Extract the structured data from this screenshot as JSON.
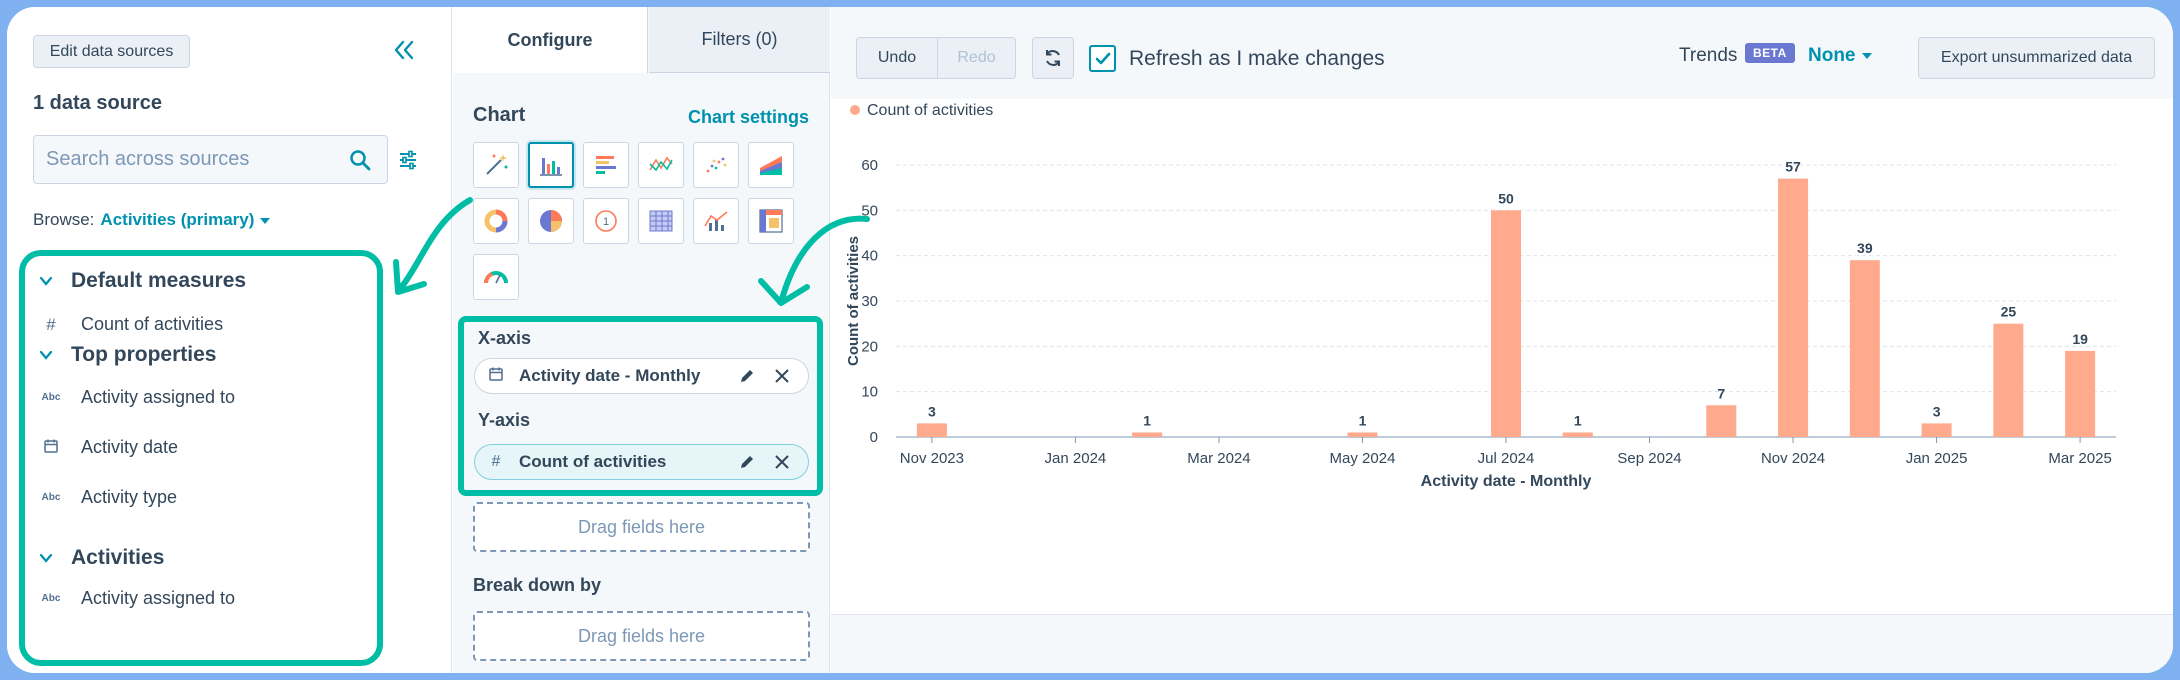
{
  "left_panel": {
    "edit_button": "Edit data sources",
    "data_source_count": "1 data source",
    "search_placeholder": "Search across sources",
    "browse_label": "Browse:",
    "browse_value": "Activities (primary)",
    "sections": [
      {
        "title": "Default measures",
        "items": [
          {
            "icon": "#",
            "label": "Count of activities"
          }
        ]
      },
      {
        "title": "Top properties",
        "items": [
          {
            "icon": "Abc",
            "label": "Activity assigned to"
          },
          {
            "icon": "calendar",
            "label": "Activity date"
          },
          {
            "icon": "Abc",
            "label": "Activity type"
          }
        ]
      },
      {
        "title": "Activities",
        "items": [
          {
            "icon": "Abc",
            "label": "Activity assigned to"
          }
        ]
      }
    ]
  },
  "middle_panel": {
    "tabs": [
      {
        "label": "Configure"
      },
      {
        "label": "Filters (0)"
      }
    ],
    "chart_heading": "Chart",
    "chart_settings": "Chart settings",
    "chart_types": [
      "magic-wand-icon",
      "column-chart-icon",
      "bar-chart-icon",
      "line-chart-icon",
      "scatter-icon",
      "area-chart-icon",
      "donut-icon",
      "pie-icon",
      "kpi-icon",
      "table-icon",
      "combo-icon",
      "pivot-icon",
      "gauge-icon"
    ],
    "x_axis_label": "X-axis",
    "x_axis_field": "Activity date - Monthly",
    "y_axis_label": "Y-axis",
    "y_axis_field": "Count of activities",
    "drag_placeholder": "Drag fields here",
    "break_down_label": "Break down by",
    "break_down_placeholder": "Drag fields here"
  },
  "toolbar": {
    "undo": "Undo",
    "redo": "Redo",
    "refresh_label": "Refresh as I make changes",
    "trends_label": "Trends",
    "beta_badge": "BETA",
    "trends_value": "None",
    "export": "Export unsummarized data"
  },
  "colors": {
    "accent": "#0091ae",
    "highlight": "#00bda5",
    "bar": "#ffa98d"
  },
  "chart_data": {
    "type": "bar",
    "legend": "Count of activities",
    "legend_position": "top-left",
    "xlabel": "Activity date - Monthly",
    "ylabel": "Count of activities",
    "ylim": [
      0,
      60
    ],
    "yticks": [
      0,
      10,
      20,
      30,
      40,
      50,
      60
    ],
    "grid": true,
    "categories": [
      "Nov 2023",
      "Dec 2023",
      "Jan 2024",
      "Feb 2024",
      "Mar 2024",
      "Apr 2024",
      "May 2024",
      "Jun 2024",
      "Jul 2024",
      "Aug 2024",
      "Sep 2024",
      "Oct 2024",
      "Nov 2024",
      "Dec 2024",
      "Jan 2025",
      "Feb 2025",
      "Mar 2025"
    ],
    "tick_labels": [
      "Nov 2023",
      "",
      "Jan 2024",
      "",
      "Mar 2024",
      "",
      "May 2024",
      "",
      "Jul 2024",
      "",
      "Sep 2024",
      "",
      "Nov 2024",
      "",
      "Jan 2025",
      "",
      "Mar 2025"
    ],
    "values": [
      3,
      0,
      0,
      1,
      0,
      0,
      1,
      0,
      50,
      1,
      0,
      7,
      57,
      39,
      3,
      25,
      19
    ]
  }
}
